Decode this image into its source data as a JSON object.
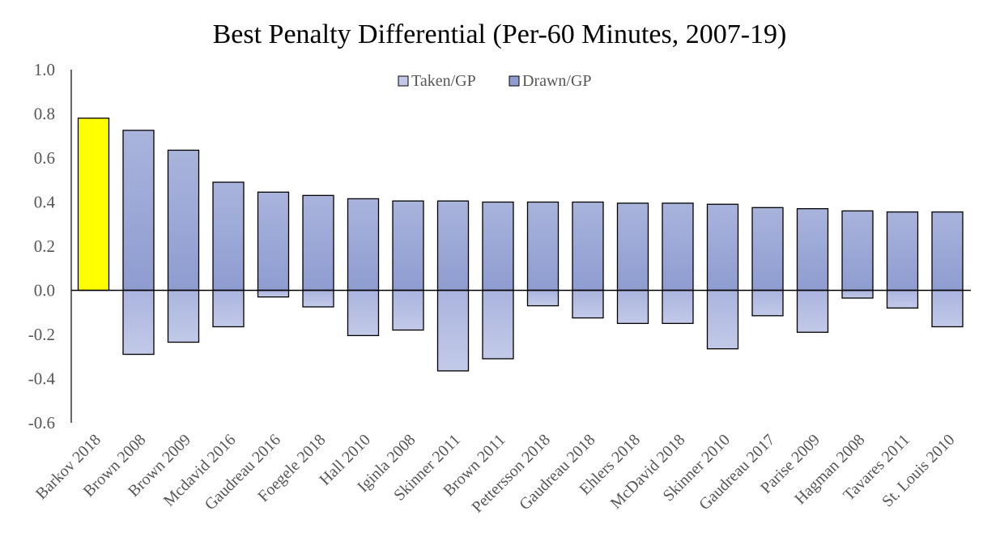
{
  "chart_data": {
    "type": "bar",
    "title": "Best Penalty Differential (Per-60 Minutes, 2007-19)",
    "xlabel": "",
    "ylabel": "",
    "ylim": [
      -0.6,
      1.0
    ],
    "yticks": [
      1.0,
      0.8,
      0.6,
      0.4,
      0.2,
      0.0,
      -0.2,
      -0.4,
      -0.6
    ],
    "ytick_labels": [
      "1.0",
      "0.8",
      "0.6",
      "0.4",
      "0.2",
      "0.0",
      "-0.2",
      "-0.4",
      "-0.6"
    ],
    "grid": false,
    "legend_position": "top-center",
    "stacked": true,
    "categories": [
      "Barkov 2018",
      "Brown 2008",
      "Brown 2009",
      "Mcdavid 2016",
      "Gaudreau 2016",
      "Foegele 2018",
      "Hall 2010",
      "Iginla 2008",
      "Skinner 2011",
      "Brown 2011",
      "Pettersson 2018",
      "Gaudreau 2018",
      "Ehlers 2018",
      "McDavid 2018",
      "Skinner 2010",
      "Gaudreau 2017",
      "Parise 2009",
      "Hagman 2008",
      "Tavares 2011",
      "St. Louis 2010"
    ],
    "series": [
      {
        "name": "Taken/GP",
        "color": "#c2c9e8",
        "values": [
          0.0,
          -0.29,
          -0.235,
          -0.165,
          -0.03,
          -0.075,
          -0.205,
          -0.18,
          -0.365,
          -0.31,
          -0.07,
          -0.125,
          -0.15,
          -0.15,
          -0.265,
          -0.115,
          -0.19,
          -0.035,
          -0.08,
          -0.165
        ]
      },
      {
        "name": "Drawn/GP",
        "color": "#8e9cd0",
        "values": [
          0.78,
          0.725,
          0.635,
          0.49,
          0.445,
          0.43,
          0.415,
          0.405,
          0.405,
          0.4,
          0.4,
          0.4,
          0.395,
          0.395,
          0.39,
          0.375,
          0.37,
          0.36,
          0.355,
          0.355
        ]
      }
    ],
    "highlight": {
      "category": "Barkov 2018",
      "color": "#ffff00"
    }
  }
}
